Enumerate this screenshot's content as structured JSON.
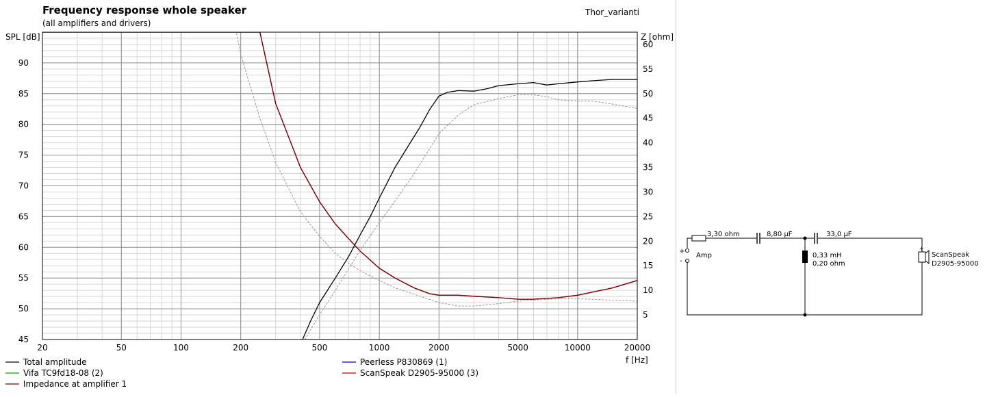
{
  "chart_data": {
    "type": "line",
    "title": "Frequency response whole speaker",
    "subtitle": "(all amplifiers and drivers)",
    "project_name": "Thor_varianti",
    "xlabel": "f [Hz]",
    "ylabel": "SPL [dB]",
    "y2label": "Z [ohm]",
    "xscale": "log",
    "xlim": [
      20,
      20000
    ],
    "ylim": [
      45,
      95
    ],
    "y2lim": [
      0,
      62.5
    ],
    "grid": true,
    "x_ticks": [
      20,
      50,
      100,
      200,
      500,
      1000,
      2000,
      5000,
      10000,
      20000
    ],
    "x_tick_labels": [
      "20",
      "50",
      "100",
      "200",
      "500",
      "1000",
      "2000",
      "5000",
      "10000",
      "20000"
    ],
    "y_ticks": [
      45,
      50,
      55,
      60,
      65,
      70,
      75,
      80,
      85,
      90
    ],
    "y_tick_labels": [
      "45",
      "50",
      "55",
      "60",
      "65",
      "70",
      "75",
      "80",
      "85",
      "90"
    ],
    "y2_ticks": [
      5,
      10,
      15,
      20,
      25,
      30,
      35,
      40,
      45,
      50,
      55,
      60
    ],
    "y2_tick_labels": [
      "5",
      "10",
      "15",
      "20",
      "25",
      "30",
      "35",
      "40",
      "45",
      "50",
      "55",
      "60"
    ],
    "legend_placement": "bottom",
    "series": [
      {
        "name": "Total amplitude",
        "color": "#000000",
        "style": "solid",
        "axis": "left",
        "x": [
          410,
          450,
          500,
          600,
          700,
          800,
          900,
          1000,
          1200,
          1400,
          1600,
          1800,
          2000,
          2200,
          2500,
          3000,
          3500,
          4000,
          5000,
          6000,
          7000,
          8000,
          10000,
          12000,
          15000,
          20000
        ],
        "y": [
          45,
          48,
          51,
          55,
          58.5,
          62,
          65,
          68,
          73,
          76.5,
          79.5,
          82.5,
          84.6,
          85.2,
          85.5,
          85.4,
          85.8,
          86.3,
          86.6,
          86.8,
          86.4,
          86.6,
          86.9,
          87.1,
          87.3,
          87.3
        ]
      },
      {
        "name": "Peerless P830869 (1)",
        "color": "#0000cc",
        "style": "solid",
        "axis": "left",
        "x": [
          400,
          20000
        ],
        "y": [
          45,
          45
        ]
      },
      {
        "name": "Vifa TC9fd18-08 (2)",
        "color": "#00aa00",
        "style": "solid",
        "axis": "left",
        "x": [],
        "y": []
      },
      {
        "name": "ScanSpeak D2905-95000 (3)",
        "color": "#c00000",
        "style": "solid",
        "axis": "right",
        "x": [
          20,
          250,
          300,
          400,
          500,
          600,
          700,
          800,
          1000,
          1200,
          1500,
          1800,
          2000,
          2500,
          3000,
          4000,
          5000,
          6000,
          8000,
          10000,
          15000,
          20000
        ],
        "y": [
          62.5,
          62.5,
          48,
          35,
          28,
          23.5,
          20.5,
          18,
          14.5,
          12.5,
          10.5,
          9.3,
          9.0,
          9.0,
          8.8,
          8.5,
          8.2,
          8.2,
          8.5,
          9.0,
          10.5,
          12.0
        ]
      },
      {
        "name": "Impedance at amplifier 1",
        "color": "#7a0000",
        "style": "solid",
        "axis": "right",
        "x": [
          20,
          250,
          300,
          400,
          500,
          600,
          700,
          800,
          1000,
          1200,
          1500,
          1800,
          2000,
          2500,
          3000,
          4000,
          5000,
          6000,
          8000,
          10000,
          15000,
          20000
        ],
        "y": [
          62.5,
          62.5,
          48,
          35,
          28,
          23.5,
          20.5,
          18,
          14.5,
          12.5,
          10.5,
          9.3,
          9.0,
          9.0,
          8.8,
          8.5,
          8.2,
          8.2,
          8.5,
          9.0,
          10.5,
          12.0
        ]
      },
      {
        "name": "",
        "color": "#a89090",
        "style": "dashed",
        "axis": "right",
        "x": [
          20,
          190,
          200,
          250,
          300,
          400,
          500,
          600,
          700,
          800,
          1000,
          1200,
          1500,
          2000,
          2500,
          3000,
          4000,
          5000,
          6000,
          8000,
          10000,
          15000,
          20000
        ],
        "y": [
          62.5,
          62.5,
          58,
          45,
          36,
          26,
          21,
          17.5,
          15.5,
          14,
          12,
          10.5,
          9.2,
          7.5,
          6.8,
          6.8,
          7.3,
          7.8,
          8.0,
          8.3,
          8.3,
          8.0,
          7.8
        ]
      },
      {
        "name": "",
        "color": "#a89090",
        "style": "dashed",
        "axis": "left",
        "x": [
          420,
          500,
          600,
          700,
          800,
          1000,
          1200,
          1500,
          2000,
          2500,
          3000,
          4000,
          5000,
          6000,
          7000,
          8000,
          10000,
          12000,
          15000,
          20000
        ],
        "y": [
          45,
          49,
          53,
          56.5,
          59.5,
          64,
          67.5,
          72,
          78.5,
          81.5,
          83.2,
          84.2,
          84.8,
          84.8,
          84.5,
          84.0,
          83.8,
          83.8,
          83.3,
          82.6
        ]
      }
    ]
  },
  "legend": [
    {
      "label": "Total amplitude",
      "color": "#000000"
    },
    {
      "label": "Peerless P830869 (1)",
      "color": "#0000cc"
    },
    {
      "label": "Vifa TC9fd18-08 (2)",
      "color": "#00aa00"
    },
    {
      "label": "ScanSpeak D2905-95000 (3)",
      "color": "#c00000"
    },
    {
      "label": "Impedance at amplifier 1",
      "color": "#7a0000"
    }
  ],
  "schematic": {
    "amp_label": "Amp",
    "plus_label": "+",
    "minus_label": "-",
    "resistor_label": "3,30 ohm",
    "capacitor1_label": "8,80 µF",
    "capacitor2_label": "33,0 µF",
    "inductor_value": "0,33 mH",
    "inductor_resistance": "0,20 ohm",
    "driver_brand": "ScanSpeak",
    "driver_model": "D2905-95000"
  }
}
